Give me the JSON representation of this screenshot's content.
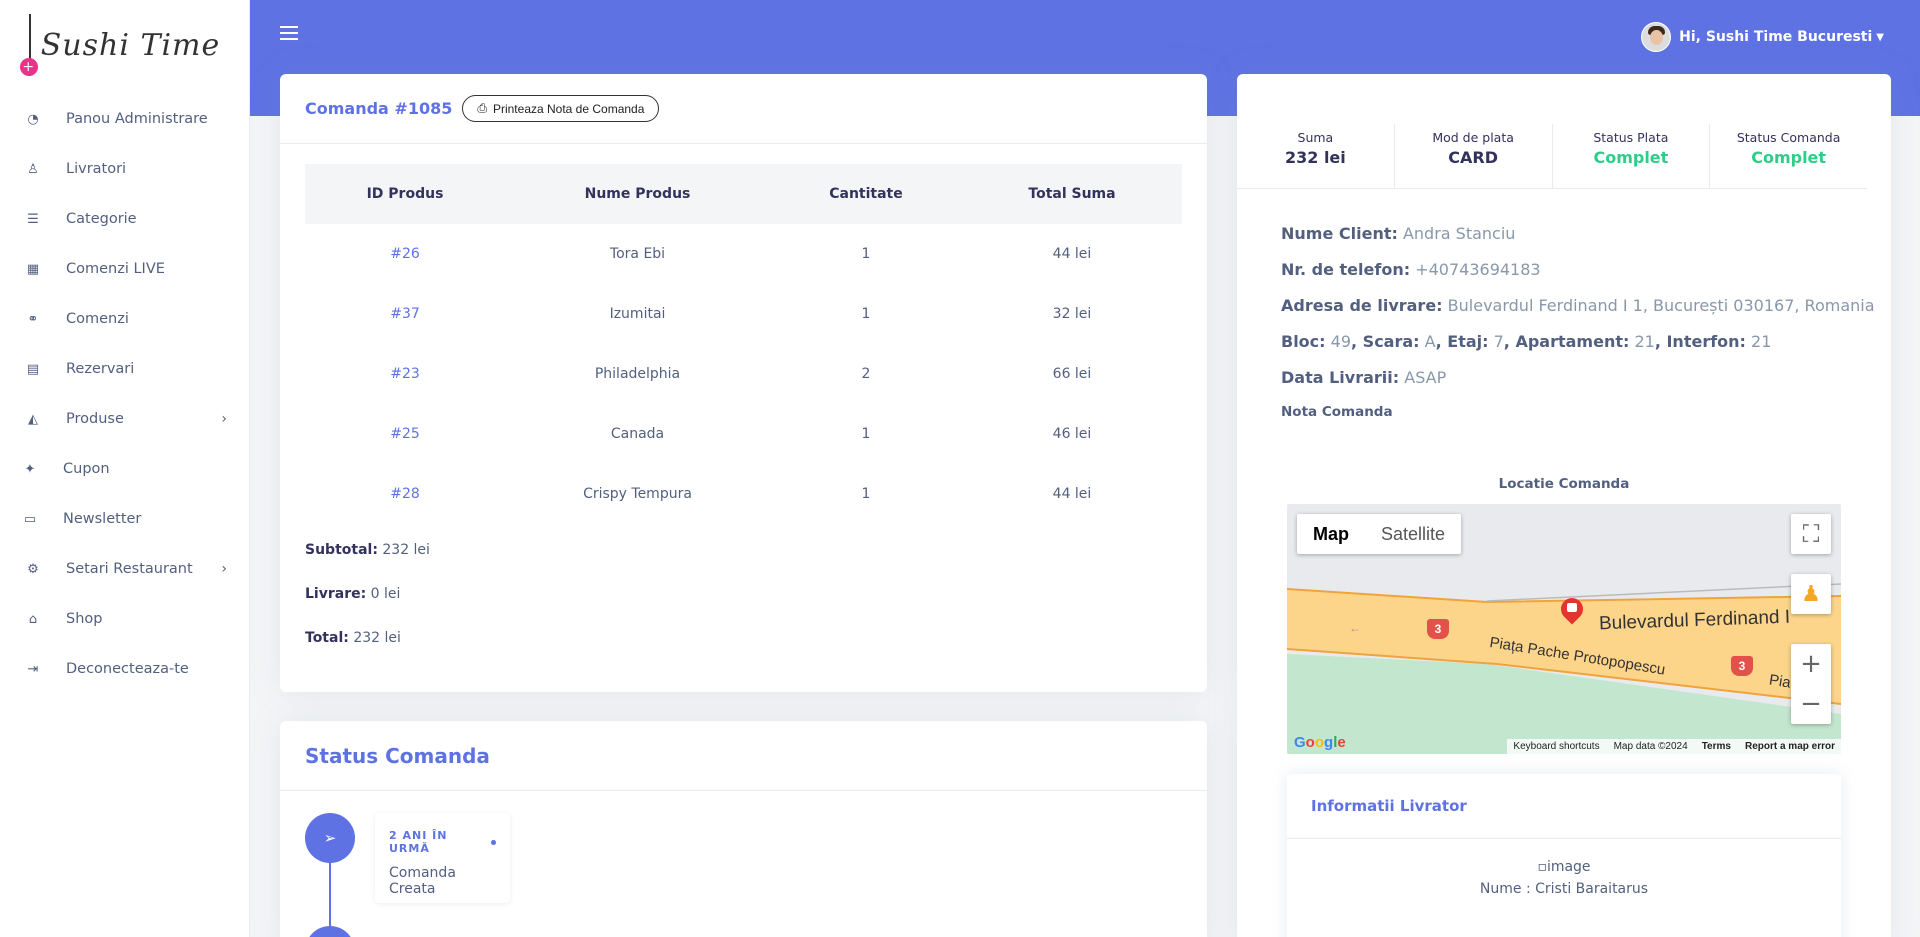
{
  "brand": {
    "logo_text": "Sushi Time"
  },
  "sidebar": {
    "items": [
      {
        "label": "Panou Administrare",
        "icon": "dashboard-icon"
      },
      {
        "label": "Livratori",
        "icon": "user-icon"
      },
      {
        "label": "Categorie",
        "icon": "list-icon"
      },
      {
        "label": "Comenzi LIVE",
        "icon": "grid-icon"
      },
      {
        "label": "Comenzi",
        "icon": "bicycle-icon"
      },
      {
        "label": "Rezervari",
        "icon": "calendar-icon"
      },
      {
        "label": "Produse",
        "icon": "pizza-icon",
        "has_submenu": true
      },
      {
        "label": "Cupon",
        "icon": "gift-icon"
      },
      {
        "label": "Newsletter",
        "icon": "card-icon"
      },
      {
        "label": "Setari Restaurant",
        "icon": "cogs-icon",
        "has_submenu": true
      },
      {
        "label": "Shop",
        "icon": "store-icon"
      },
      {
        "label": "Deconecteaza-te",
        "icon": "logout-icon"
      }
    ]
  },
  "header": {
    "greeting": "Hi, Sushi Time Bucuresti"
  },
  "order": {
    "title": "Comanda #1085",
    "print_label": "Printeaza Nota de Comanda",
    "columns": [
      "ID Produs",
      "Nume Produs",
      "Cantitate",
      "Total Suma"
    ],
    "rows": [
      {
        "id": "#26",
        "name": "Tora Ebi",
        "qty": "1",
        "total": "44 lei"
      },
      {
        "id": "#37",
        "name": "Izumitai",
        "qty": "1",
        "total": "32 lei"
      },
      {
        "id": "#23",
        "name": "Philadelphia",
        "qty": "2",
        "total": "66 lei"
      },
      {
        "id": "#25",
        "name": "Canada",
        "qty": "1",
        "total": "46 lei"
      },
      {
        "id": "#28",
        "name": "Crispy Tempura",
        "qty": "1",
        "total": "44 lei"
      }
    ],
    "subtotal_label": "Subtotal:",
    "subtotal": "232 lei",
    "delivery_label": "Livrare:",
    "delivery": "0 lei",
    "total_label": "Total:",
    "total": "232 lei"
  },
  "status": {
    "title": "Status Comanda",
    "events": [
      {
        "time": "2 ANI ÎN URMĂ",
        "text": "Comanda Creata"
      }
    ]
  },
  "summary": {
    "suma_label": "Suma",
    "suma": "232 lei",
    "plata_label": "Mod de plata",
    "plata": "CARD",
    "status_plata_label": "Status Plata",
    "status_plata": "Complet",
    "status_comanda_label": "Status Comanda",
    "status_comanda": "Complet",
    "status_color": "#2dce89"
  },
  "client": {
    "name_label": "Nume Client:",
    "name": "Andra Stanciu",
    "phone_label": "Nr. de telefon:",
    "phone": "+40743694183",
    "address_label": "Adresa de livrare:",
    "address": "Bulevardul Ferdinand I 1, București 030167, Romania",
    "bloc_label": "Bloc:",
    "bloc": "49",
    "scara_label": ", Scara:",
    "scara": "A",
    "etaj_label": ", Etaj:",
    "etaj": "7",
    "apartament_label": ", Apartament:",
    "apartament": "21",
    "interfon_label": ", Interfon:",
    "interfon": "21",
    "data_label": "Data Livrarii:",
    "data": "ASAP",
    "nota_label": "Nota Comanda"
  },
  "map": {
    "title": "Locatie Comanda",
    "tab_map": "Map",
    "tab_satellite": "Satellite",
    "street_main": "Bulevardul Ferdinand I",
    "street_square": "Piața Pache Protopopescu",
    "street_cut": "Piața",
    "shield": "3",
    "google": "Google",
    "links": [
      "Keyboard shortcuts",
      "Map data ©2024",
      "Terms",
      "Report a map error"
    ]
  },
  "livrator": {
    "title": "Informatii Livrator",
    "image_alt": "image",
    "name": "Nume : Cristi Baraitarus"
  }
}
